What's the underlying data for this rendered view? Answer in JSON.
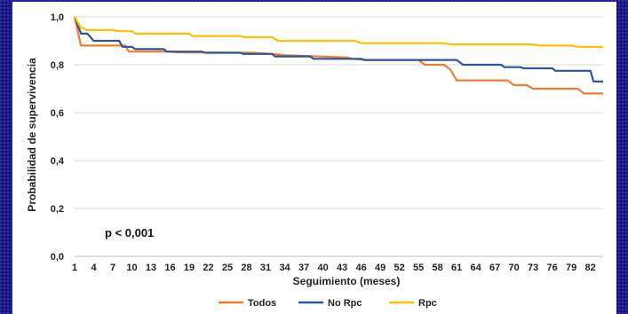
{
  "chart_data": {
    "type": "line",
    "xlabel": "Seguimiento (meses)",
    "ylabel": "Probabilidad de supervivencia",
    "xlim": [
      1,
      84
    ],
    "ylim": [
      0,
      1
    ],
    "x_ticks": [
      1,
      4,
      7,
      10,
      13,
      16,
      19,
      22,
      25,
      28,
      31,
      34,
      37,
      40,
      43,
      46,
      49,
      52,
      55,
      58,
      61,
      64,
      67,
      70,
      73,
      76,
      79,
      82
    ],
    "y_ticks": [
      {
        "value": 0,
        "label": "0,0"
      },
      {
        "value": 0.2,
        "label": "0,2"
      },
      {
        "value": 0.4,
        "label": "0,4"
      },
      {
        "value": 0.6,
        "label": "0,6"
      },
      {
        "value": 0.8,
        "label": "0,8"
      },
      {
        "value": 1,
        "label": "1,0"
      }
    ],
    "annotation": "p < 0,001",
    "legend_position": "bottom",
    "series": [
      {
        "name": "Todos",
        "color": "#ed7d31",
        "points": [
          [
            1,
            1.0
          ],
          [
            2,
            0.88
          ],
          [
            9,
            0.88
          ],
          [
            9.5,
            0.855
          ],
          [
            16,
            0.855
          ],
          [
            17,
            0.852
          ],
          [
            29,
            0.85
          ],
          [
            32,
            0.845
          ],
          [
            34,
            0.84
          ],
          [
            44,
            0.83
          ],
          [
            44.5,
            0.825
          ],
          [
            47,
            0.82
          ],
          [
            55,
            0.82
          ],
          [
            56,
            0.8
          ],
          [
            59,
            0.8
          ],
          [
            60,
            0.78
          ],
          [
            61,
            0.735
          ],
          [
            69,
            0.735
          ],
          [
            70,
            0.715
          ],
          [
            72,
            0.715
          ],
          [
            73,
            0.7
          ],
          [
            80,
            0.7
          ],
          [
            81,
            0.68
          ],
          [
            84,
            0.68
          ]
        ]
      },
      {
        "name": "No Rpc",
        "color": "#2f5597",
        "points": [
          [
            1,
            1.0
          ],
          [
            2,
            0.93
          ],
          [
            3,
            0.93
          ],
          [
            4,
            0.9
          ],
          [
            8,
            0.9
          ],
          [
            8.5,
            0.875
          ],
          [
            10,
            0.875
          ],
          [
            10.5,
            0.865
          ],
          [
            15,
            0.865
          ],
          [
            15.5,
            0.855
          ],
          [
            21,
            0.855
          ],
          [
            21.5,
            0.85
          ],
          [
            27,
            0.85
          ],
          [
            27.5,
            0.845
          ],
          [
            32,
            0.845
          ],
          [
            32.5,
            0.835
          ],
          [
            38,
            0.835
          ],
          [
            38.5,
            0.825
          ],
          [
            46,
            0.825
          ],
          [
            46.5,
            0.82
          ],
          [
            61,
            0.82
          ],
          [
            62,
            0.8
          ],
          [
            68,
            0.8
          ],
          [
            68.5,
            0.79
          ],
          [
            71,
            0.79
          ],
          [
            71.5,
            0.785
          ],
          [
            76,
            0.785
          ],
          [
            76.5,
            0.775
          ],
          [
            82,
            0.775
          ],
          [
            82.5,
            0.73
          ],
          [
            84,
            0.73
          ]
        ]
      },
      {
        "name": "Rpc",
        "color": "#ffc000",
        "points": [
          [
            1,
            1.0
          ],
          [
            2,
            0.955
          ],
          [
            3,
            0.945
          ],
          [
            7,
            0.945
          ],
          [
            8,
            0.94
          ],
          [
            10,
            0.94
          ],
          [
            10.5,
            0.93
          ],
          [
            19,
            0.93
          ],
          [
            19.5,
            0.92
          ],
          [
            27,
            0.92
          ],
          [
            27.5,
            0.915
          ],
          [
            32,
            0.915
          ],
          [
            33,
            0.9
          ],
          [
            45,
            0.9
          ],
          [
            46,
            0.89
          ],
          [
            59,
            0.89
          ],
          [
            60,
            0.885
          ],
          [
            73,
            0.885
          ],
          [
            74,
            0.88
          ],
          [
            79,
            0.88
          ],
          [
            80,
            0.875
          ],
          [
            84,
            0.875
          ]
        ]
      }
    ]
  }
}
